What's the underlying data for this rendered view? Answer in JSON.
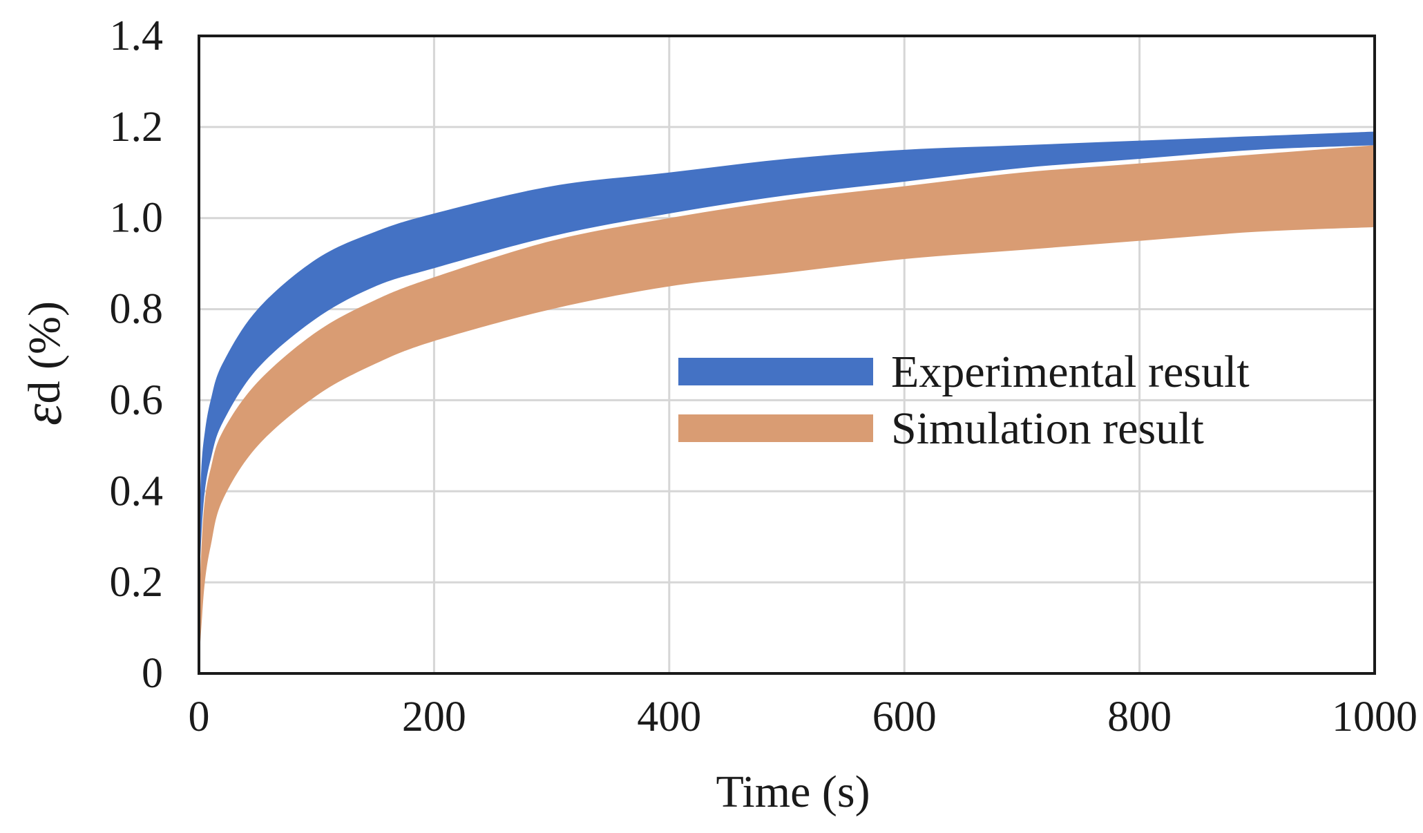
{
  "chart_data": {
    "type": "area",
    "title": "",
    "xlabel": "Time (s)",
    "ylabel_symbol": "ε",
    "ylabel_subscript": "d",
    "ylabel_unit": " (%)",
    "xlim": [
      0,
      1000
    ],
    "ylim": [
      0,
      1.4
    ],
    "x_ticks": [
      0,
      200,
      400,
      600,
      800,
      1000
    ],
    "x_tick_labels": [
      "0",
      "200",
      "400",
      "600",
      "800",
      "1000"
    ],
    "y_ticks": [
      0,
      0.2,
      0.4,
      0.6,
      0.8,
      1.0,
      1.2,
      1.4
    ],
    "y_tick_labels": [
      "0",
      "0.2",
      "0.4",
      "0.6",
      "0.8",
      "1.0",
      "1.2",
      "1.4"
    ],
    "grid": true,
    "legend_position": "center-right",
    "series": [
      {
        "name": "Experimental result",
        "color": "#4472c4",
        "x": [
          0,
          2,
          5,
          10,
          20,
          50,
          100,
          150,
          200,
          300,
          400,
          500,
          600,
          700,
          800,
          900,
          1000
        ],
        "lower": [
          0.18,
          0.3,
          0.4,
          0.47,
          0.55,
          0.67,
          0.78,
          0.85,
          0.89,
          0.96,
          1.01,
          1.05,
          1.08,
          1.11,
          1.13,
          1.15,
          1.16
        ],
        "upper": [
          0.3,
          0.45,
          0.53,
          0.6,
          0.68,
          0.8,
          0.91,
          0.97,
          1.01,
          1.07,
          1.1,
          1.13,
          1.15,
          1.16,
          1.17,
          1.18,
          1.19
        ]
      },
      {
        "name": "Simulation result",
        "color": "#d99c73",
        "x": [
          0,
          2,
          5,
          10,
          20,
          50,
          100,
          150,
          200,
          300,
          400,
          500,
          600,
          700,
          800,
          900,
          1000
        ],
        "lower": [
          0.02,
          0.1,
          0.2,
          0.28,
          0.38,
          0.5,
          0.61,
          0.68,
          0.73,
          0.8,
          0.85,
          0.88,
          0.91,
          0.93,
          0.95,
          0.97,
          0.98
        ],
        "upper": [
          0.12,
          0.27,
          0.38,
          0.45,
          0.53,
          0.64,
          0.75,
          0.82,
          0.87,
          0.95,
          1.0,
          1.04,
          1.07,
          1.1,
          1.12,
          1.14,
          1.16
        ]
      }
    ]
  }
}
